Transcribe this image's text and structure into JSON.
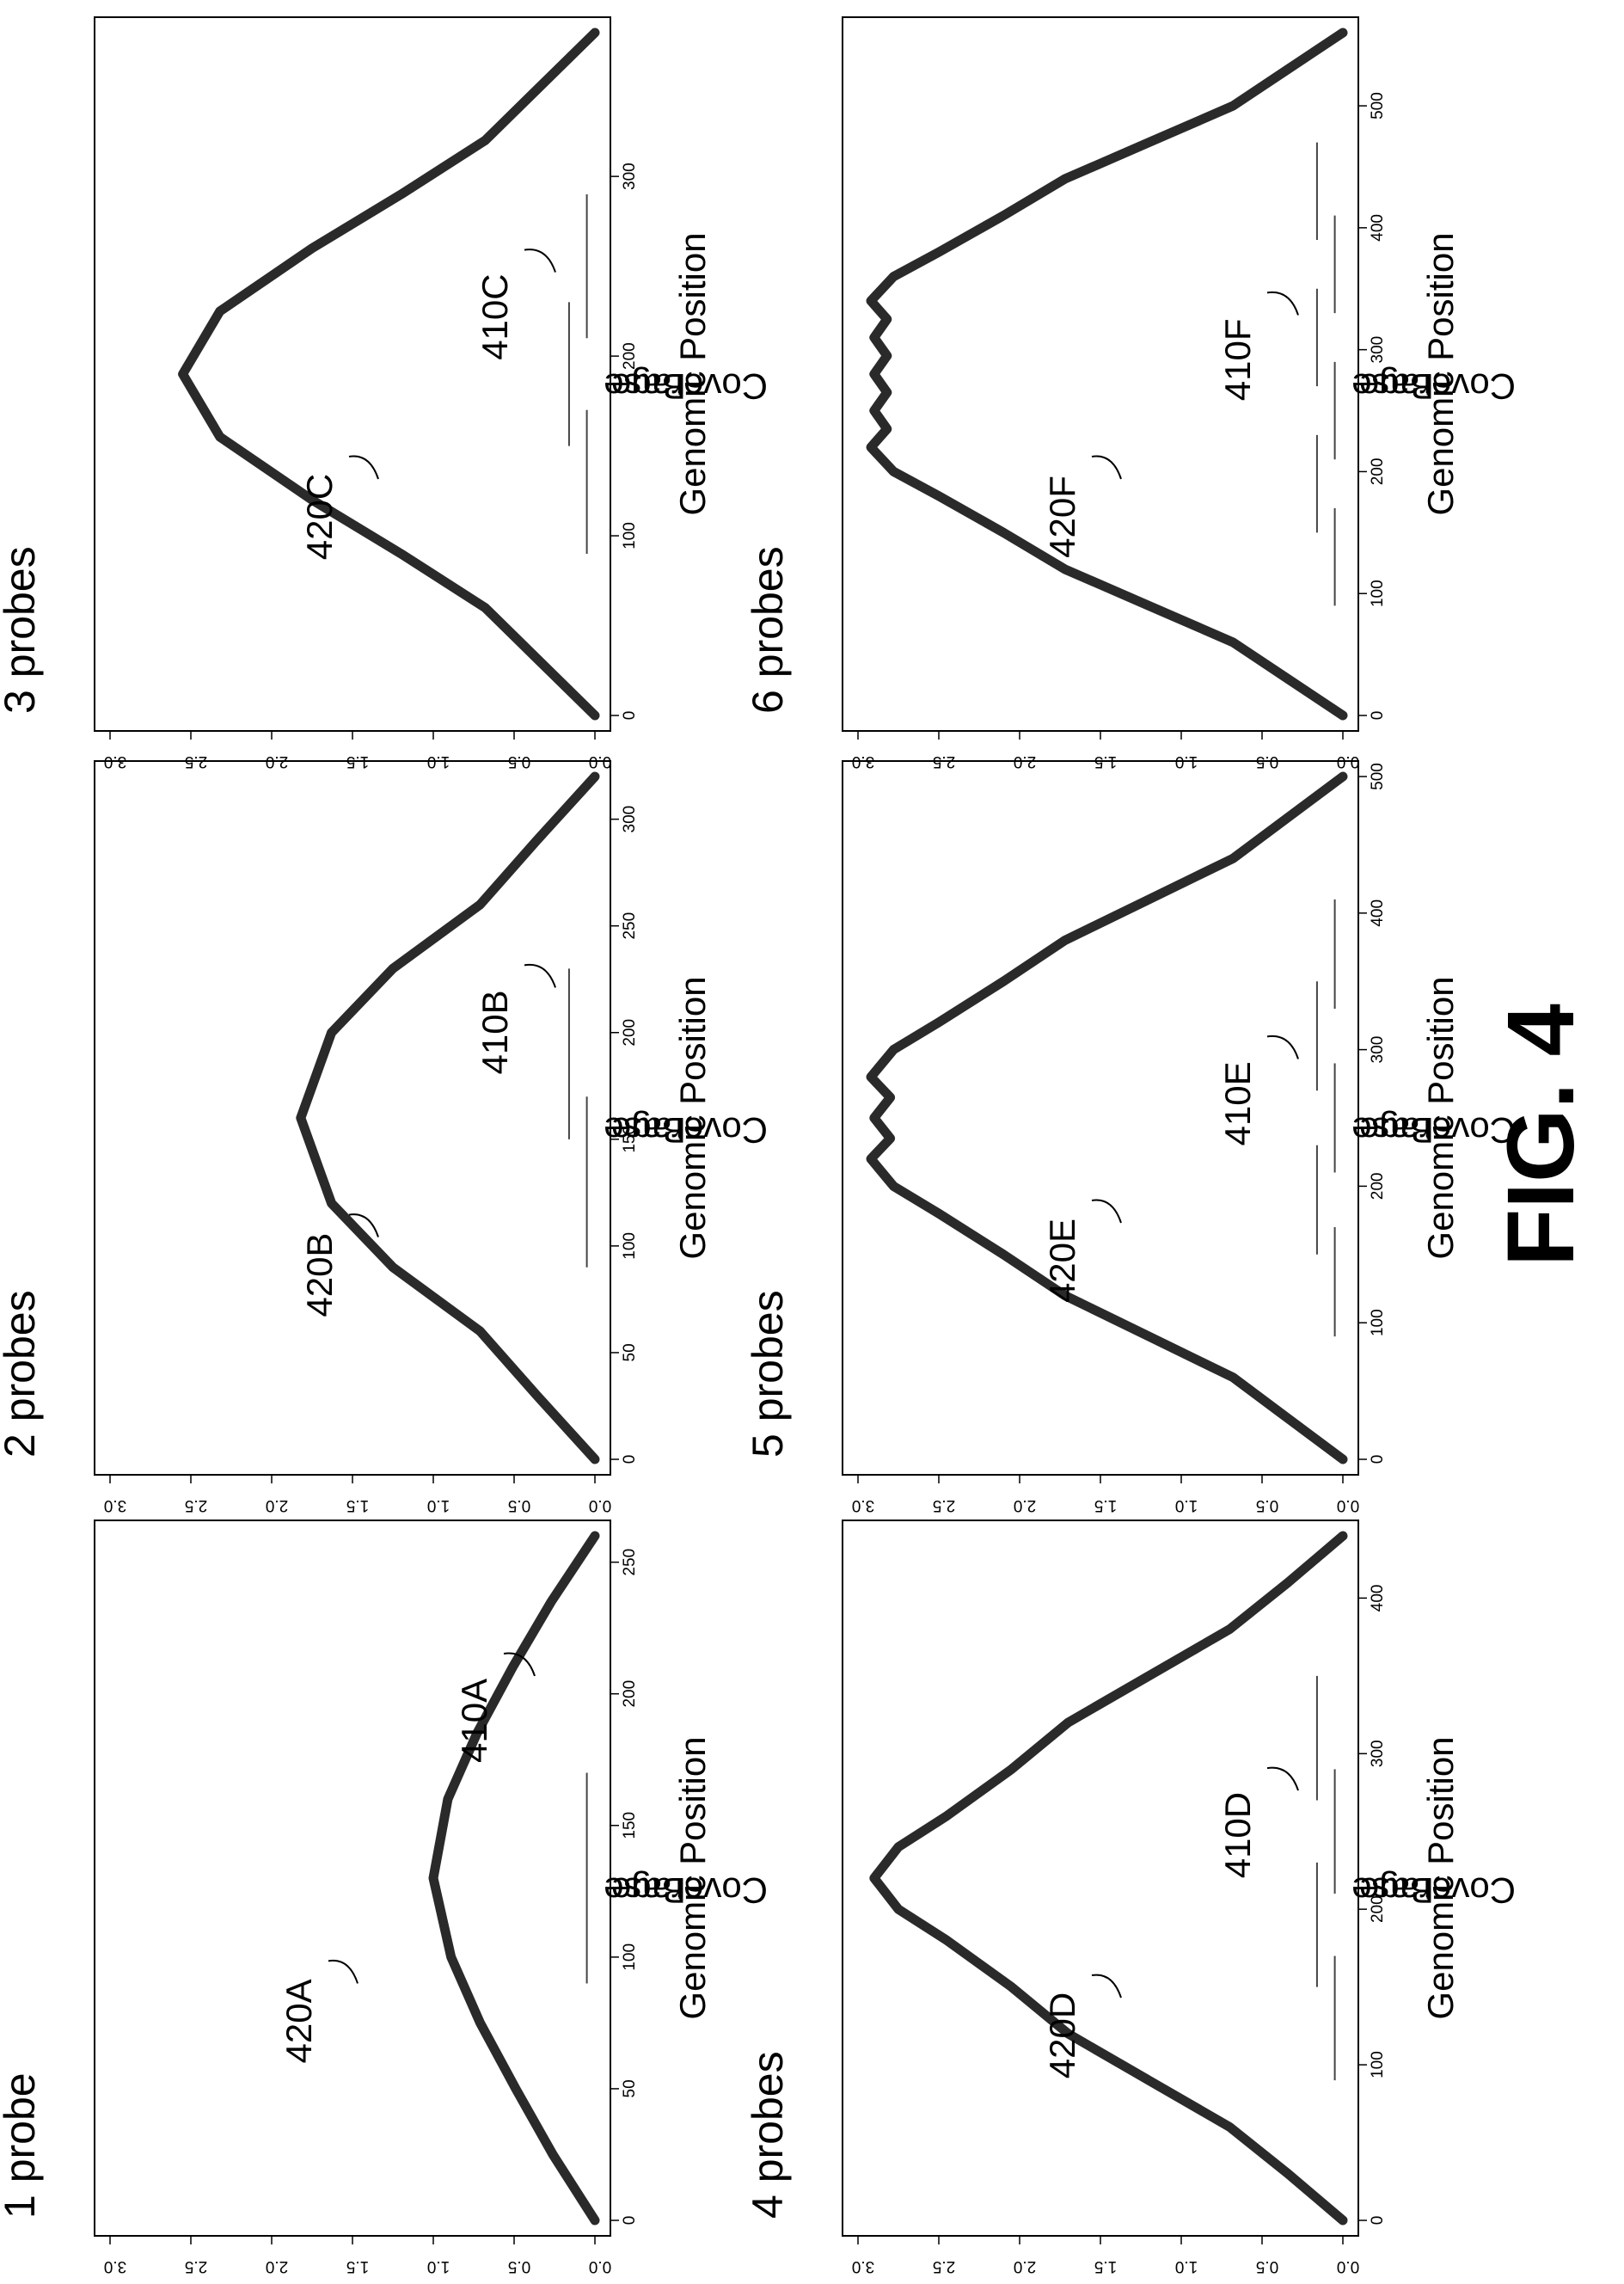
{
  "figure_label": "FIG. 4",
  "colors": {
    "curve": "#2a2a2a",
    "frame": "#000000",
    "probe": "#444444"
  },
  "chart_data": [
    {
      "type": "line",
      "title": "1 probe",
      "xlabel": "Genomic Position",
      "ylabel": [
        "Base",
        "Coverage"
      ],
      "xlim": [
        0,
        260
      ],
      "ylim": [
        0,
        3
      ],
      "x_ticks": [
        0,
        50,
        100,
        150,
        200,
        250
      ],
      "y_ticks": [
        "0.0",
        "0.5",
        "1.0",
        "1.5",
        "2.0",
        "2.5",
        "3.0"
      ],
      "probe_window": 170,
      "probes": [
        [
          90,
          170
        ]
      ],
      "curve_label": "420A",
      "probe_label": "410A",
      "series": [
        {
          "x": [
            0,
            25,
            50,
            75,
            100,
            130,
            160,
            185,
            210,
            235,
            260
          ],
          "y": [
            0.0,
            0.26,
            0.49,
            0.71,
            0.89,
            1.0,
            0.91,
            0.73,
            0.51,
            0.27,
            0.0
          ]
        }
      ]
    },
    {
      "type": "line",
      "title": "2 probes",
      "xlabel": "Genomic Position",
      "ylabel": [
        "Base",
        "Coverage"
      ],
      "xlim": [
        0,
        320
      ],
      "ylim": [
        0,
        3
      ],
      "x_ticks": [
        0,
        50,
        100,
        150,
        200,
        250,
        300
      ],
      "y_ticks": [
        "0.0",
        "0.5",
        "1.0",
        "1.5",
        "2.0",
        "2.5",
        "3.0"
      ],
      "probe_window": 170,
      "probes": [
        [
          90,
          170
        ],
        [
          150,
          230
        ]
      ],
      "curve_label": "420B",
      "probe_label": "410B",
      "series": [
        {
          "x": [
            0,
            30,
            60,
            90,
            120,
            160,
            200,
            230,
            260,
            290,
            320
          ],
          "y": [
            0.0,
            0.36,
            0.71,
            1.25,
            1.63,
            1.82,
            1.63,
            1.25,
            0.71,
            0.36,
            0.0
          ]
        }
      ]
    },
    {
      "type": "line",
      "title": "3 probes",
      "xlabel": "Genomic Position",
      "ylabel": [
        "Base",
        "Coverage"
      ],
      "xlim": [
        0,
        380
      ],
      "ylim": [
        0,
        3
      ],
      "x_ticks": [
        0,
        100,
        200,
        300
      ],
      "y_ticks": [
        "0.0",
        "0.5",
        "1.0",
        "1.5",
        "2.0",
        "2.5",
        "3.0"
      ],
      "probe_window": 170,
      "probes": [
        [
          90,
          170
        ],
        [
          150,
          230
        ],
        [
          210,
          290
        ]
      ],
      "curve_label": "420C",
      "probe_label": "410C",
      "series": [
        {
          "x": [
            0,
            30,
            60,
            90,
            120,
            155,
            190,
            225,
            260,
            290,
            320,
            350,
            380
          ],
          "y": [
            0.0,
            0.34,
            0.68,
            1.2,
            1.75,
            2.32,
            2.55,
            2.32,
            1.75,
            1.2,
            0.68,
            0.34,
            0.0
          ]
        }
      ]
    },
    {
      "type": "line",
      "title": "4 probes",
      "xlabel": "Genomic Position",
      "ylabel": [
        "Base",
        "Coverage"
      ],
      "xlim": [
        0,
        440
      ],
      "ylim": [
        0,
        3
      ],
      "x_ticks": [
        0,
        100,
        200,
        300,
        400
      ],
      "y_ticks": [
        "0.0",
        "0.5",
        "1.0",
        "1.5",
        "2.0",
        "2.5",
        "3.0"
      ],
      "probe_window": 170,
      "probes": [
        [
          90,
          170
        ],
        [
          150,
          230
        ],
        [
          210,
          290
        ],
        [
          270,
          350
        ]
      ],
      "curve_label": "420D",
      "probe_label": "410D",
      "series": [
        {
          "x": [
            0,
            30,
            60,
            90,
            120,
            150,
            180,
            200,
            220,
            240,
            260,
            290,
            320,
            350,
            380,
            410,
            440
          ],
          "y": [
            0.0,
            0.34,
            0.7,
            1.2,
            1.7,
            2.05,
            2.45,
            2.75,
            2.9,
            2.75,
            2.45,
            2.05,
            1.7,
            1.2,
            0.7,
            0.34,
            0.0
          ]
        }
      ]
    },
    {
      "type": "line",
      "title": "5 probes",
      "xlabel": "Genomic Position",
      "ylabel": [
        "Base",
        "Coverage"
      ],
      "xlim": [
        0,
        500
      ],
      "ylim": [
        0,
        3
      ],
      "x_ticks": [
        0,
        100,
        200,
        300,
        400,
        500
      ],
      "y_ticks": [
        "0.0",
        "0.5",
        "1.0",
        "1.5",
        "2.0",
        "2.5",
        "3.0"
      ],
      "probe_window": 170,
      "probes": [
        [
          90,
          170
        ],
        [
          150,
          230
        ],
        [
          210,
          290
        ],
        [
          270,
          350
        ],
        [
          330,
          410
        ]
      ],
      "curve_label": "420E",
      "probe_label": "410E",
      "series": [
        {
          "x": [
            0,
            30,
            60,
            90,
            120,
            150,
            180,
            200,
            220,
            235,
            250,
            265,
            280,
            300,
            320,
            350,
            380,
            410,
            440,
            470,
            500
          ],
          "y": [
            0.0,
            0.34,
            0.68,
            1.2,
            1.72,
            2.1,
            2.5,
            2.78,
            2.92,
            2.8,
            2.9,
            2.8,
            2.92,
            2.78,
            2.5,
            2.1,
            1.72,
            1.2,
            0.68,
            0.34,
            0.0
          ]
        }
      ]
    },
    {
      "type": "line",
      "title": "6 probes",
      "xlabel": "Genomic Position",
      "ylabel": [
        "Base",
        "Coverage"
      ],
      "xlim": [
        0,
        560
      ],
      "ylim": [
        0,
        3
      ],
      "x_ticks": [
        0,
        100,
        200,
        300,
        400,
        500
      ],
      "y_ticks": [
        "0.0",
        "0.5",
        "1.0",
        "1.5",
        "2.0",
        "2.5",
        "3.0"
      ],
      "probe_window": 170,
      "probes": [
        [
          90,
          170
        ],
        [
          150,
          230
        ],
        [
          210,
          290
        ],
        [
          270,
          350
        ],
        [
          330,
          410
        ],
        [
          390,
          470
        ]
      ],
      "curve_label": "420F",
      "probe_label": "410F",
      "series": [
        {
          "x": [
            0,
            30,
            60,
            90,
            120,
            150,
            180,
            200,
            220,
            235,
            250,
            265,
            280,
            295,
            310,
            325,
            340,
            360,
            380,
            410,
            440,
            470,
            500,
            530,
            560
          ],
          "y": [
            0.0,
            0.34,
            0.68,
            1.2,
            1.72,
            2.1,
            2.5,
            2.78,
            2.92,
            2.82,
            2.9,
            2.82,
            2.9,
            2.82,
            2.9,
            2.82,
            2.92,
            2.78,
            2.5,
            2.1,
            1.72,
            1.2,
            0.68,
            0.34,
            0.0
          ]
        }
      ]
    }
  ]
}
